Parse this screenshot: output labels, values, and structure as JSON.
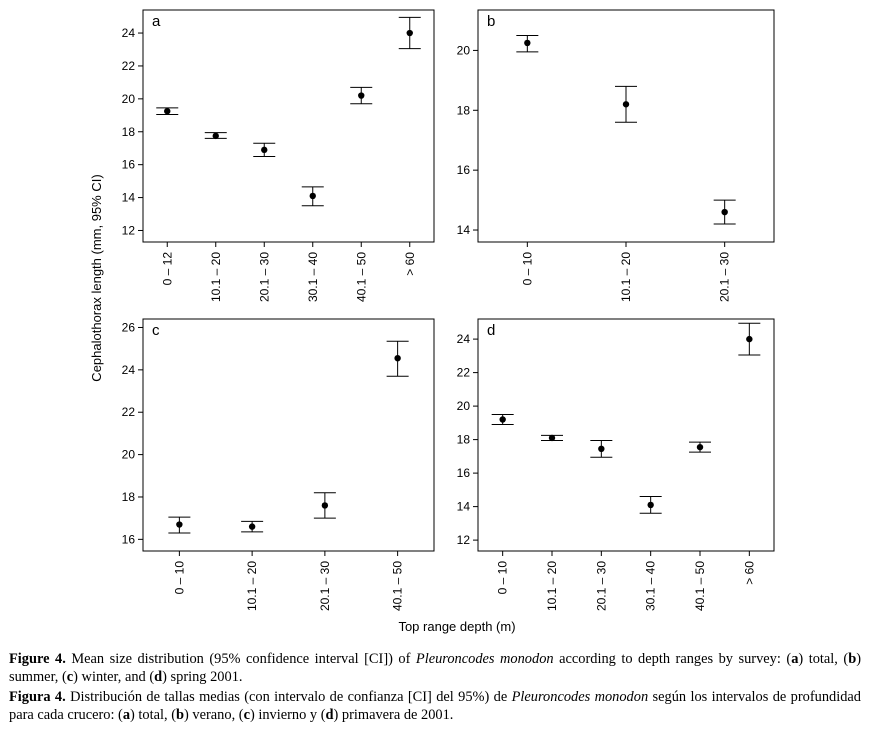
{
  "figure": {
    "ylabel": "Cephalothorax length (mm, 95% CI)",
    "xlabel": "Top range depth (m)"
  },
  "chart_data": [
    {
      "type": "errorbar-scatter",
      "panel": "a",
      "categories": [
        "0 – 12",
        "10.1 – 20",
        "20.1 – 30",
        "30.1 – 40",
        "40.1 – 50",
        "> 60"
      ],
      "mean": [
        19.25,
        17.75,
        16.9,
        14.1,
        20.2,
        24.0
      ],
      "ci_low": [
        19.05,
        17.6,
        16.5,
        13.5,
        19.7,
        23.05
      ],
      "ci_high": [
        19.45,
        17.95,
        17.3,
        14.65,
        20.7,
        24.95
      ],
      "yticks": [
        12,
        14,
        16,
        18,
        20,
        22,
        24
      ],
      "ylim": [
        11.3,
        25.4
      ]
    },
    {
      "type": "errorbar-scatter",
      "panel": "b",
      "categories": [
        "0 – 10",
        "10.1 – 20",
        "20.1 – 30"
      ],
      "mean": [
        20.25,
        18.2,
        14.6
      ],
      "ci_low": [
        19.95,
        17.6,
        14.2
      ],
      "ci_high": [
        20.5,
        18.8,
        15.0
      ],
      "yticks": [
        14,
        16,
        18,
        20
      ],
      "ylim": [
        13.6,
        21.35
      ]
    },
    {
      "type": "errorbar-scatter",
      "panel": "c",
      "categories": [
        "0 – 10",
        "10.1 – 20",
        "20.1 – 30",
        "40.1 – 50"
      ],
      "mean": [
        16.7,
        16.6,
        17.6,
        24.55
      ],
      "ci_low": [
        16.3,
        16.35,
        17.0,
        23.7
      ],
      "ci_high": [
        17.05,
        16.85,
        18.2,
        25.35
      ],
      "yticks": [
        16,
        18,
        20,
        22,
        24,
        26
      ],
      "ylim": [
        15.45,
        26.4
      ]
    },
    {
      "type": "errorbar-scatter",
      "panel": "d",
      "categories": [
        "0 – 10",
        "10.1 – 20",
        "20.1 – 30",
        "30.1 – 40",
        "40.1 – 50",
        "> 60"
      ],
      "mean": [
        19.2,
        18.1,
        17.45,
        14.1,
        17.55,
        24.0
      ],
      "ci_low": [
        18.9,
        17.95,
        16.95,
        13.6,
        17.25,
        23.05
      ],
      "ci_high": [
        19.5,
        18.25,
        17.95,
        14.6,
        17.85,
        24.95
      ],
      "yticks": [
        12,
        14,
        16,
        18,
        20,
        22,
        24
      ],
      "ylim": [
        11.35,
        25.2
      ]
    }
  ],
  "caption_en": {
    "label": "Figure 4.",
    "text1": " Mean size distribution (95% confidence interval [CI]) of ",
    "species": "Pleuroncodes monodon",
    "text2": " according to depth ranges by survey: (",
    "a": "a",
    "text3": ") total, (",
    "b": "b",
    "text4": ") summer, (",
    "c": "c",
    "text5": ") winter, and (",
    "d": "d",
    "text6": ") spring 2001."
  },
  "caption_es": {
    "label": "Figura 4.",
    "text1": " Distribución de tallas medias (con intervalo de confianza [CI] del 95%) de ",
    "species": "Pleuroncodes monodon",
    "text2": " según los intervalos de profundidad para cada crucero: (",
    "a": "a",
    "text3": ") total, (",
    "b": "b",
    "text4": ") verano, (",
    "c": "c",
    "text5": ") invierno y (",
    "d": "d",
    "text6": ") primavera de 2001."
  }
}
